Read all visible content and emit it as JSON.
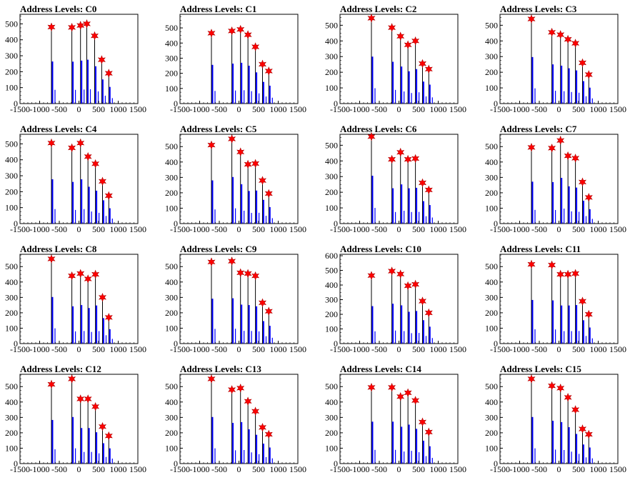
{
  "colors": {
    "hist_black": "#000000",
    "hist_blue": "#0000ff",
    "marker_red": "#ff0000",
    "axis": "#000000"
  },
  "chart_data": [
    {
      "type": "bar",
      "title": "Address Levels: C0",
      "xlim": [
        -1500,
        1500
      ],
      "ylim": [
        0,
        560
      ],
      "x_ticks": [
        -1500,
        -1000,
        -500,
        0,
        500,
        1000,
        1500
      ],
      "y_ticks": [
        0,
        100,
        200,
        300,
        400,
        500
      ],
      "peaks": [
        {
          "x": -700,
          "y": 480
        },
        {
          "x": -180,
          "y": 478
        },
        {
          "x": 40,
          "y": 490
        },
        {
          "x": 200,
          "y": 500
        },
        {
          "x": 400,
          "y": 425
        },
        {
          "x": 580,
          "y": 275
        },
        {
          "x": 760,
          "y": 190
        }
      ]
    },
    {
      "type": "bar",
      "title": "Address Levels: C1",
      "xlim": [
        -1500,
        1500
      ],
      "ylim": [
        0,
        590
      ],
      "x_ticks": [
        -1500,
        -1000,
        -500,
        0,
        500,
        1000,
        1500
      ],
      "y_ticks": [
        0,
        100,
        200,
        300,
        400,
        500
      ],
      "peaks": [
        {
          "x": -700,
          "y": 465
        },
        {
          "x": -180,
          "y": 480
        },
        {
          "x": 40,
          "y": 490
        },
        {
          "x": 230,
          "y": 455
        },
        {
          "x": 420,
          "y": 375
        },
        {
          "x": 600,
          "y": 260
        },
        {
          "x": 760,
          "y": 215
        }
      ]
    },
    {
      "type": "bar",
      "title": "Address Levels: C2",
      "xlim": [
        -1500,
        1500
      ],
      "ylim": [
        0,
        570
      ],
      "x_ticks": [
        -1500,
        -1000,
        -500,
        0,
        500,
        1000,
        1500
      ],
      "y_ticks": [
        0,
        100,
        200,
        300,
        400,
        500
      ],
      "peaks": [
        {
          "x": -700,
          "y": 545
        },
        {
          "x": -180,
          "y": 485
        },
        {
          "x": 40,
          "y": 430
        },
        {
          "x": 230,
          "y": 375
        },
        {
          "x": 420,
          "y": 400
        },
        {
          "x": 600,
          "y": 255
        },
        {
          "x": 760,
          "y": 220
        }
      ]
    },
    {
      "type": "bar",
      "title": "Address Levels: C3",
      "xlim": [
        -1500,
        1500
      ],
      "ylim": [
        0,
        570
      ],
      "x_ticks": [
        -1500,
        -1000,
        -500,
        0,
        500,
        1000,
        1500
      ],
      "y_ticks": [
        0,
        100,
        200,
        300,
        400,
        500
      ],
      "peaks": [
        {
          "x": -700,
          "y": 540
        },
        {
          "x": -180,
          "y": 455
        },
        {
          "x": 40,
          "y": 440
        },
        {
          "x": 230,
          "y": 410
        },
        {
          "x": 420,
          "y": 385
        },
        {
          "x": 600,
          "y": 260
        },
        {
          "x": 760,
          "y": 185
        }
      ]
    },
    {
      "type": "bar",
      "title": "Address Levels: C4",
      "xlim": [
        -1500,
        1500
      ],
      "ylim": [
        0,
        560
      ],
      "x_ticks": [
        -1500,
        -1000,
        -500,
        0,
        500,
        1000,
        1500
      ],
      "y_ticks": [
        0,
        100,
        200,
        300,
        400,
        500
      ],
      "peaks": [
        {
          "x": -700,
          "y": 505
        },
        {
          "x": -180,
          "y": 475
        },
        {
          "x": 40,
          "y": 505
        },
        {
          "x": 230,
          "y": 420
        },
        {
          "x": 420,
          "y": 375
        },
        {
          "x": 600,
          "y": 265
        },
        {
          "x": 760,
          "y": 175
        }
      ]
    },
    {
      "type": "bar",
      "title": "Address Levels: C5",
      "xlim": [
        -1500,
        1500
      ],
      "ylim": [
        0,
        580
      ],
      "x_ticks": [
        -1500,
        -1000,
        -500,
        0,
        500,
        1000,
        1500
      ],
      "y_ticks": [
        0,
        100,
        200,
        300,
        400,
        500
      ],
      "peaks": [
        {
          "x": -700,
          "y": 510
        },
        {
          "x": -180,
          "y": 550
        },
        {
          "x": 40,
          "y": 465
        },
        {
          "x": 230,
          "y": 385
        },
        {
          "x": 420,
          "y": 390
        },
        {
          "x": 600,
          "y": 280
        },
        {
          "x": 760,
          "y": 195
        }
      ]
    },
    {
      "type": "bar",
      "title": "Address Levels: C6",
      "xlim": [
        -1500,
        1500
      ],
      "ylim": [
        0,
        570
      ],
      "x_ticks": [
        -1500,
        -1000,
        -500,
        0,
        500,
        1000,
        1500
      ],
      "y_ticks": [
        0,
        100,
        200,
        300,
        400,
        500
      ],
      "peaks": [
        {
          "x": -700,
          "y": 555
        },
        {
          "x": -180,
          "y": 410
        },
        {
          "x": 40,
          "y": 455
        },
        {
          "x": 230,
          "y": 410
        },
        {
          "x": 420,
          "y": 415
        },
        {
          "x": 600,
          "y": 260
        },
        {
          "x": 760,
          "y": 215
        }
      ]
    },
    {
      "type": "bar",
      "title": "Address Levels: C7",
      "xlim": [
        -1500,
        1500
      ],
      "ylim": [
        0,
        580
      ],
      "x_ticks": [
        -1500,
        -1000,
        -500,
        0,
        500,
        1000,
        1500
      ],
      "y_ticks": [
        0,
        100,
        200,
        300,
        400,
        500
      ],
      "peaks": [
        {
          "x": -700,
          "y": 495
        },
        {
          "x": -180,
          "y": 490
        },
        {
          "x": 40,
          "y": 540
        },
        {
          "x": 230,
          "y": 440
        },
        {
          "x": 420,
          "y": 425
        },
        {
          "x": 600,
          "y": 270
        },
        {
          "x": 760,
          "y": 170
        }
      ]
    },
    {
      "type": "bar",
      "title": "Address Levels: C8",
      "xlim": [
        -1500,
        1500
      ],
      "ylim": [
        0,
        580
      ],
      "x_ticks": [
        -1500,
        -1000,
        -500,
        0,
        500,
        1000,
        1500
      ],
      "y_ticks": [
        0,
        100,
        200,
        300,
        400,
        500
      ],
      "peaks": [
        {
          "x": -700,
          "y": 550
        },
        {
          "x": -180,
          "y": 440
        },
        {
          "x": 40,
          "y": 455
        },
        {
          "x": 230,
          "y": 420
        },
        {
          "x": 420,
          "y": 450
        },
        {
          "x": 600,
          "y": 300
        },
        {
          "x": 760,
          "y": 170
        }
      ]
    },
    {
      "type": "bar",
      "title": "Address Levels: C9",
      "xlim": [
        -1500,
        1500
      ],
      "ylim": [
        0,
        580
      ],
      "x_ticks": [
        -1500,
        -1000,
        -500,
        0,
        500,
        1000,
        1500
      ],
      "y_ticks": [
        0,
        100,
        200,
        300,
        400,
        500
      ],
      "peaks": [
        {
          "x": -700,
          "y": 530
        },
        {
          "x": -180,
          "y": 535
        },
        {
          "x": 40,
          "y": 460
        },
        {
          "x": 230,
          "y": 455
        },
        {
          "x": 420,
          "y": 440
        },
        {
          "x": 600,
          "y": 265
        },
        {
          "x": 760,
          "y": 210
        }
      ]
    },
    {
      "type": "bar",
      "title": "Address Levels: C10",
      "xlim": [
        -1500,
        1500
      ],
      "ylim": [
        0,
        610
      ],
      "x_ticks": [
        -1500,
        -1000,
        -500,
        0,
        500,
        1000,
        1500
      ],
      "y_ticks": [
        0,
        100,
        200,
        300,
        400,
        500,
        600
      ],
      "peaks": [
        {
          "x": -700,
          "y": 465
        },
        {
          "x": -180,
          "y": 495
        },
        {
          "x": 40,
          "y": 475
        },
        {
          "x": 230,
          "y": 395
        },
        {
          "x": 420,
          "y": 405
        },
        {
          "x": 600,
          "y": 290
        },
        {
          "x": 760,
          "y": 210
        }
      ]
    },
    {
      "type": "bar",
      "title": "Address Levels: C11",
      "xlim": [
        -1500,
        1500
      ],
      "ylim": [
        0,
        580
      ],
      "x_ticks": [
        -1500,
        -1000,
        -500,
        0,
        500,
        1000,
        1500
      ],
      "y_ticks": [
        0,
        100,
        200,
        300,
        400,
        500
      ],
      "peaks": [
        {
          "x": -700,
          "y": 515
        },
        {
          "x": -180,
          "y": 510
        },
        {
          "x": 40,
          "y": 450
        },
        {
          "x": 230,
          "y": 450
        },
        {
          "x": 420,
          "y": 455
        },
        {
          "x": 600,
          "y": 275
        },
        {
          "x": 760,
          "y": 190
        }
      ]
    },
    {
      "type": "bar",
      "title": "Address Levels: C12",
      "xlim": [
        -1500,
        1500
      ],
      "ylim": [
        0,
        580
      ],
      "x_ticks": [
        -1500,
        -1000,
        -500,
        0,
        500,
        1000,
        1500
      ],
      "y_ticks": [
        0,
        100,
        200,
        300,
        400,
        500
      ],
      "peaks": [
        {
          "x": -700,
          "y": 515
        },
        {
          "x": -180,
          "y": 550
        },
        {
          "x": 40,
          "y": 420
        },
        {
          "x": 230,
          "y": 420
        },
        {
          "x": 420,
          "y": 370
        },
        {
          "x": 600,
          "y": 240
        },
        {
          "x": 760,
          "y": 180
        }
      ]
    },
    {
      "type": "bar",
      "title": "Address Levels: C13",
      "xlim": [
        -1500,
        1500
      ],
      "ylim": [
        0,
        580
      ],
      "x_ticks": [
        -1500,
        -1000,
        -500,
        0,
        500,
        1000,
        1500
      ],
      "y_ticks": [
        0,
        100,
        200,
        300,
        400,
        500
      ],
      "peaks": [
        {
          "x": -700,
          "y": 550
        },
        {
          "x": -180,
          "y": 480
        },
        {
          "x": 40,
          "y": 490
        },
        {
          "x": 230,
          "y": 405
        },
        {
          "x": 420,
          "y": 340
        },
        {
          "x": 600,
          "y": 235
        },
        {
          "x": 760,
          "y": 190
        }
      ]
    },
    {
      "type": "bar",
      "title": "Address Levels: C14",
      "xlim": [
        -1500,
        1500
      ],
      "ylim": [
        0,
        580
      ],
      "x_ticks": [
        -1500,
        -1000,
        -500,
        0,
        500,
        1000,
        1500
      ],
      "y_ticks": [
        0,
        100,
        200,
        300,
        400,
        500
      ],
      "peaks": [
        {
          "x": -700,
          "y": 495
        },
        {
          "x": -180,
          "y": 495
        },
        {
          "x": 40,
          "y": 435
        },
        {
          "x": 230,
          "y": 460
        },
        {
          "x": 420,
          "y": 410
        },
        {
          "x": 600,
          "y": 270
        },
        {
          "x": 760,
          "y": 205
        }
      ]
    },
    {
      "type": "bar",
      "title": "Address Levels: C15",
      "xlim": [
        -1500,
        1500
      ],
      "ylim": [
        0,
        580
      ],
      "x_ticks": [
        -1500,
        -1000,
        -500,
        0,
        500,
        1000,
        1500
      ],
      "y_ticks": [
        0,
        100,
        200,
        300,
        400,
        500
      ],
      "peaks": [
        {
          "x": -700,
          "y": 550
        },
        {
          "x": -180,
          "y": 505
        },
        {
          "x": 40,
          "y": 490
        },
        {
          "x": 230,
          "y": 430
        },
        {
          "x": 420,
          "y": 350
        },
        {
          "x": 600,
          "y": 225
        },
        {
          "x": 760,
          "y": 190
        }
      ]
    }
  ]
}
